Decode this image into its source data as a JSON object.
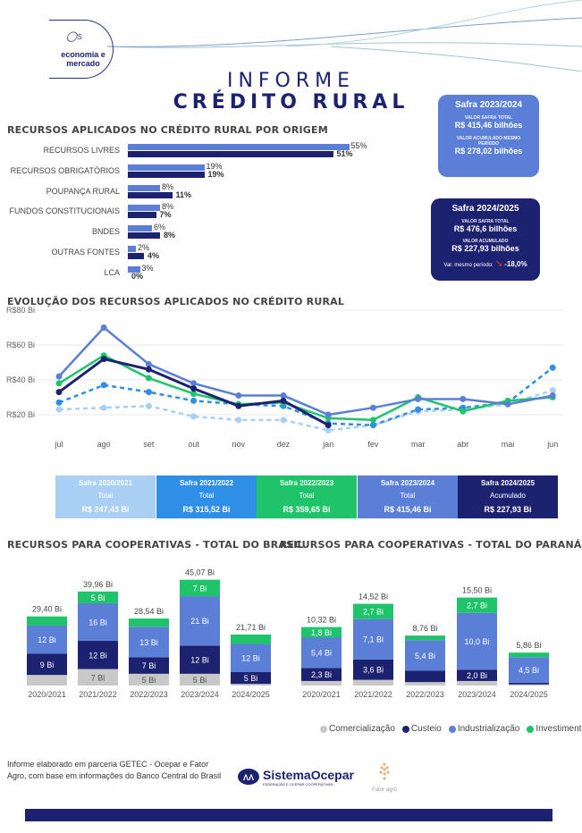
{
  "header": {
    "logo_text_line1": "economia e",
    "logo_text_line2": "mercado",
    "title_line1": "INFORME",
    "title_line2": "CRÉDITO RURAL"
  },
  "cards": {
    "safra_2023": {
      "title": "Safra 2023/2024",
      "label1": "VALOR SAFRA TOTAL",
      "value1": "R$ 415,46 bilhões",
      "label2": "VALOR ACUMULADO MESMO PERÍODO",
      "value2": "R$ 278,02 bilhões",
      "color": "#5b7fd6"
    },
    "safra_2024": {
      "title": "Safra 2024/2025",
      "label1": "VALOR SAFRA TOTAL",
      "value1": "R$ 476,6 bilhões",
      "label2": "VALOR ACUMULADO",
      "value2": "R$ 227,93 bilhões",
      "var_label": "Var. mesmo período:",
      "var_value": "-18,0%",
      "color": "#1d2270"
    }
  },
  "origem": {
    "title": "RECURSOS APLICADOS NO CRÉDITO RURAL POR ORIGEM",
    "rows": [
      {
        "label": "RECURSOS LIVRES",
        "v2324": "55%",
        "v2425": "51%",
        "a": 55,
        "b": 51
      },
      {
        "label": "RECURSOS OBRIGATÓRIOS",
        "v2324": "19%",
        "v2425": "19%",
        "a": 19,
        "b": 19
      },
      {
        "label": "POUPANÇA RURAL",
        "v2324": "8%",
        "v2425": "11%",
        "a": 8,
        "b": 11
      },
      {
        "label": "FUNDOS CONSTITUCIONAIS",
        "v2324": "8%",
        "v2425": "7%",
        "a": 8,
        "b": 7
      },
      {
        "label": "BNDES",
        "v2324": "6%",
        "v2425": "8%",
        "a": 6,
        "b": 8
      },
      {
        "label": "OUTRAS FONTES",
        "v2324": "2%",
        "v2425": "4%",
        "a": 2,
        "b": 4
      },
      {
        "label": "LCA",
        "v2324": "3%",
        "v2425": "0%",
        "a": 3,
        "b": 0
      }
    ],
    "colors": {
      "a": "#5b7fd6",
      "b": "#1d2270"
    }
  },
  "evolucao": {
    "title": "EVOLUÇÃO DOS RECURSOS APLICADOS NO CRÉDITO RURAL",
    "y_ticks": [
      "R$80 Bi",
      "R$60 Bi",
      "R$40 Bi",
      "R$20 Bi"
    ]
  },
  "safras_summary": [
    {
      "title": "Safra 2020/2021",
      "sub": "Total",
      "value": "R$ 247,43 Bi",
      "color": "#a9cff5"
    },
    {
      "title": "Safra 2021/2022",
      "sub": "Total",
      "value": "R$ 315,52 Bi",
      "color": "#2f8ee6"
    },
    {
      "title": "Safra 2022/2023",
      "sub": "Total",
      "value": "R$ 359,65 Bi",
      "color": "#1fc46a"
    },
    {
      "title": "Safra 2023/2024",
      "sub": "Total",
      "value": "R$ 415,46 Bi",
      "color": "#5b7fd6"
    },
    {
      "title": "Safra 2024/2025",
      "sub": "Acumulado",
      "value": "R$ 227,93 Bi",
      "color": "#1d2270"
    }
  ],
  "coop_brasil": {
    "title": "RECURSOS PARA COOPERATIVAS - TOTAL DO BRASIL"
  },
  "coop_parana": {
    "title": "RECURSOS PARA COOPERATIVAS - TOTAL DO PARANÁ"
  },
  "legend": [
    {
      "label": "Comercialização",
      "color": "#c8c8c8"
    },
    {
      "label": "Custeio",
      "color": "#1d2270"
    },
    {
      "label": "Industrialização",
      "color": "#5b7fd6"
    },
    {
      "label": "Investimento",
      "color": "#1fc46a"
    }
  ],
  "footer": {
    "text": "Informe elaborado em parceria GETEC - Ocepar e Fator Agro, com base em informações do Banco Central do Brasil",
    "logo1": "SistemaOcepar",
    "logo1_sub": "FEDERAÇÃO E OCEPAR COOPERATIVAS",
    "logo2": "Fator agro"
  },
  "chart_data": [
    {
      "type": "bar",
      "title": "RECURSOS APLICADOS NO CRÉDITO RURAL POR ORIGEM",
      "orientation": "horizontal",
      "categories": [
        "RECURSOS LIVRES",
        "RECURSOS OBRIGATÓRIOS",
        "POUPANÇA RURAL",
        "FUNDOS CONSTITUCIONAIS",
        "BNDES",
        "OUTRAS FONTES",
        "LCA"
      ],
      "series": [
        {
          "values": [
            55,
            19,
            8,
            8,
            6,
            2,
            3
          ]
        },
        {
          "values": [
            51,
            19,
            11,
            7,
            8,
            4,
            0
          ]
        }
      ]
    },
    {
      "type": "line",
      "title": "EVOLUÇÃO DOS RECURSOS APLICADOS NO CRÉDITO RURAL",
      "x": [
        "jul",
        "ago",
        "set",
        "out",
        "nov",
        "dez",
        "jan",
        "fev",
        "mar",
        "abr",
        "mai",
        "jun"
      ],
      "ylim": [
        0,
        80
      ],
      "y_ticks": [
        "R$80 Bi",
        "R$60 Bi",
        "R$40 Bi",
        "R$20 Bi"
      ],
      "series": [
        {
          "name": "Safra 2020/2021",
          "color": "#a9cff5",
          "dash": true,
          "values": [
            23,
            24,
            25,
            19,
            17,
            17,
            11,
            14,
            22,
            23,
            26,
            34
          ]
        },
        {
          "name": "Safra 2021/2022",
          "color": "#2f8ee6",
          "dash": true,
          "values": [
            27,
            37,
            33,
            28,
            26,
            25,
            15,
            14,
            23,
            24,
            27,
            47
          ]
        },
        {
          "name": "Safra 2022/2023",
          "color": "#1fc46a",
          "values": [
            38,
            54,
            41,
            32,
            26,
            27,
            18,
            17,
            30,
            22,
            28,
            30
          ]
        },
        {
          "name": "Safra 2023/2024",
          "color": "#5b7fd6",
          "values": [
            42,
            70,
            49,
            38,
            31,
            31,
            20,
            24,
            29,
            29,
            26,
            31
          ]
        },
        {
          "name": "Safra 2024/2025",
          "color": "#1d2270",
          "values": [
            33,
            52,
            46,
            35,
            25,
            28,
            14,
            null,
            null,
            null,
            null,
            null
          ]
        }
      ]
    },
    {
      "type": "bar",
      "stacked": true,
      "title": "RECURSOS PARA COOPERATIVAS - TOTAL DO BRASIL",
      "categories": [
        "2020/2021",
        "2021/2022",
        "2022/2023",
        "2023/2024",
        "2024/2025"
      ],
      "totals": [
        "29,40 Bi",
        "39,96 Bi",
        "28,54 Bi",
        "45,07 Bi",
        "21,71 Bi"
      ],
      "total_values": [
        29.4,
        39.96,
        28.54,
        45.07,
        21.71
      ],
      "series": [
        {
          "name": "Comercialização",
          "values": [
            4.5,
            7,
            5,
            5,
            0.7
          ],
          "labels": [
            "",
            "7 Bi",
            "5 Bi",
            "5 Bi",
            ""
          ]
        },
        {
          "name": "Custeio",
          "values": [
            9,
            12,
            7,
            12,
            5
          ],
          "labels": [
            "9 Bi",
            "12 Bi",
            "7 Bi",
            "12 Bi",
            "5 Bi"
          ]
        },
        {
          "name": "Industrialização",
          "values": [
            12,
            16,
            13,
            21,
            12
          ],
          "labels": [
            "12 Bi",
            "16 Bi",
            "13 Bi",
            "21 Bi",
            "12 Bi"
          ]
        },
        {
          "name": "Investimento",
          "values": [
            3.9,
            5,
            3.5,
            7,
            4
          ],
          "labels": [
            "",
            "5 Bi",
            "",
            "7 Bi",
            ""
          ]
        }
      ]
    },
    {
      "type": "bar",
      "stacked": true,
      "title": "RECURSOS PARA COOPERATIVAS - TOTAL DO PARANÁ",
      "categories": [
        "2020/2021",
        "2021/2022",
        "2022/2023",
        "2023/2024",
        "2024/2025"
      ],
      "totals": [
        "10,32 Bi",
        "14,52 Bi",
        "8,76 Bi",
        "15,50 Bi",
        "5,86 Bi"
      ],
      "total_values": [
        10.32,
        14.52,
        8.76,
        15.5,
        5.86
      ],
      "series": [
        {
          "name": "Comercialização",
          "values": [
            0.8,
            1.0,
            0.6,
            0.8,
            0.2
          ],
          "labels": [
            "",
            "",
            "",
            "",
            ""
          ]
        },
        {
          "name": "Custeio",
          "values": [
            2.3,
            3.6,
            2.0,
            2.0,
            0.3
          ],
          "labels": [
            "2,3 Bi",
            "3,6 Bi",
            "",
            "2,0 Bi",
            ""
          ]
        },
        {
          "name": "Industrialização",
          "values": [
            5.4,
            7.1,
            5.4,
            10.0,
            4.5
          ],
          "labels": [
            "5,4 Bi",
            "7,1 Bi",
            "5,4 Bi",
            "10,0 Bi",
            "4,5 Bi"
          ]
        },
        {
          "name": "Investimento",
          "values": [
            1.8,
            2.7,
            0.8,
            2.7,
            0.8
          ],
          "labels": [
            "1,8 Bi",
            "2,7 Bi",
            "",
            "2,7 Bi",
            ""
          ]
        }
      ]
    }
  ]
}
